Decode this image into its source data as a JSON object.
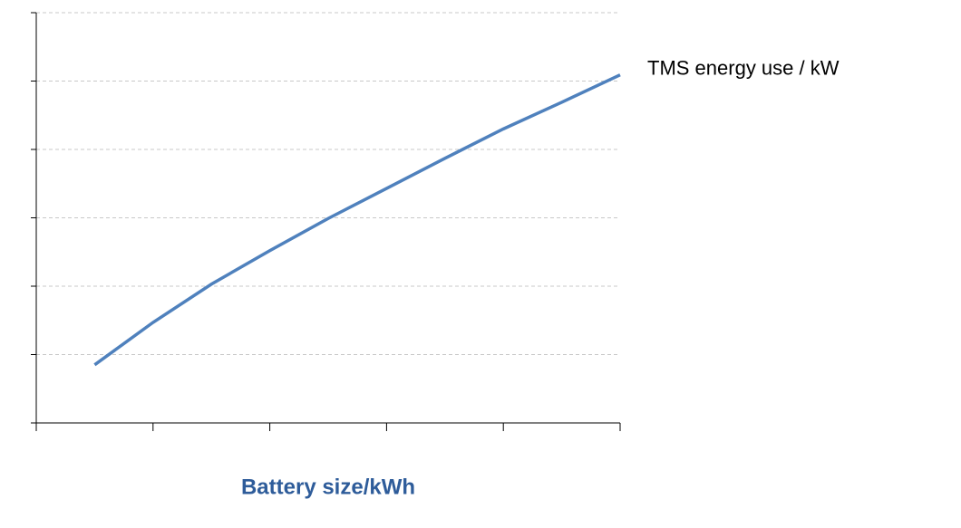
{
  "chart_data": {
    "type": "line",
    "x": [
      0.5,
      1,
      1.5,
      2,
      2.5,
      3,
      3.5,
      4,
      4.5,
      5
    ],
    "series": [
      {
        "name": "TMS energy use  / kW",
        "color": "#4f81bd",
        "values": [
          0.85,
          1.47,
          2.03,
          2.52,
          2.99,
          3.43,
          3.87,
          4.3,
          4.69,
          5.09
        ]
      }
    ],
    "x_label": "Battery size/kWh",
    "xlim": [
      0,
      5
    ],
    "xticks": [
      0,
      1,
      2,
      3,
      4,
      5
    ],
    "ylim": [
      0,
      6
    ],
    "yticks": [
      0,
      1,
      2,
      3,
      4,
      5,
      6
    ],
    "grid": true
  }
}
